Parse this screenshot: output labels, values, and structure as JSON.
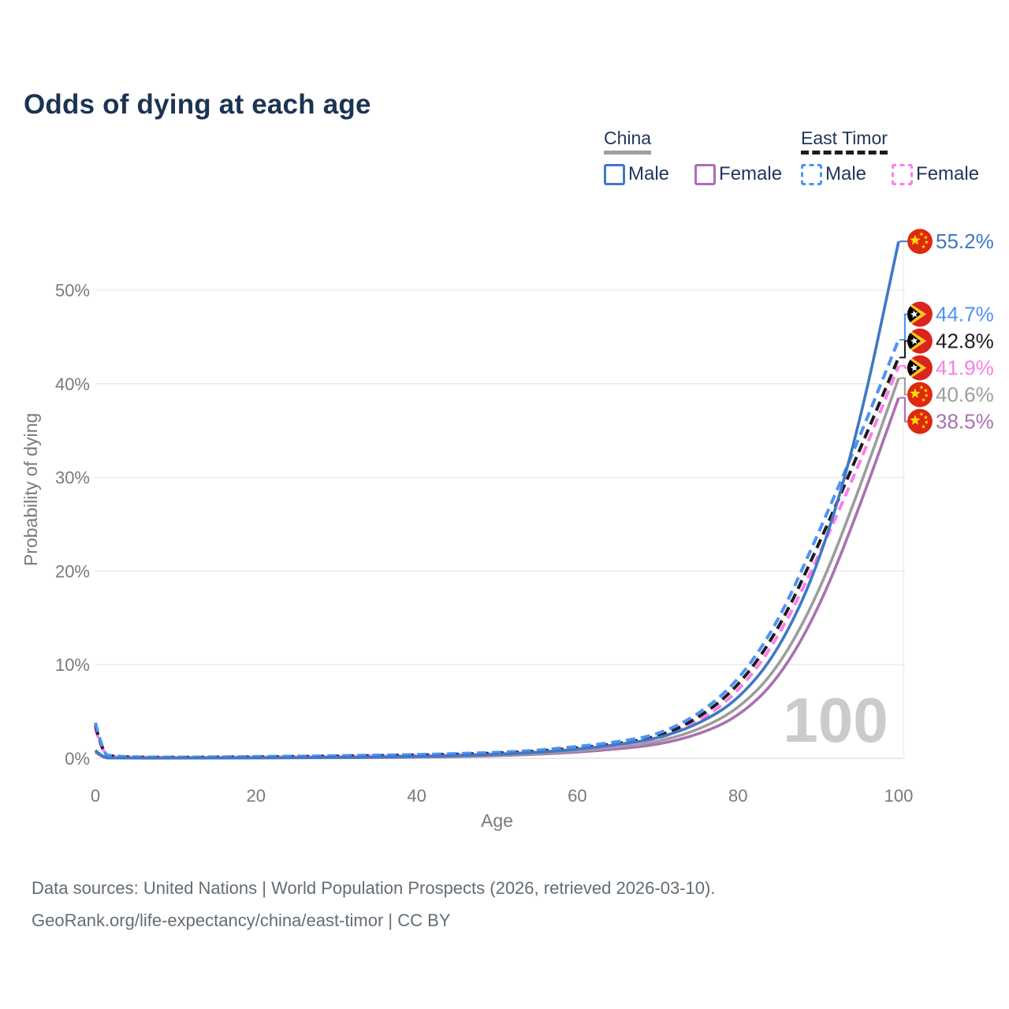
{
  "page": {
    "title": "Odds of dying at each age"
  },
  "legend": {
    "groups": [
      {
        "name": "China",
        "line_style": "solid",
        "underline_color": "#9e9e9e",
        "items": [
          {
            "label": "Male",
            "color": "#3f78c6"
          },
          {
            "label": "Female",
            "color": "#aa70b2"
          }
        ]
      },
      {
        "name": "East Timor",
        "line_style": "dashed",
        "underline_color": "#1c1c1c",
        "items": [
          {
            "label": "Male",
            "color": "#4d92f7"
          },
          {
            "label": "Female",
            "color": "#fb7de7"
          }
        ]
      }
    ]
  },
  "axes": {
    "x_label": "Age",
    "y_label": "Probability of dying",
    "x_ticks": [
      0,
      20,
      40,
      60,
      80,
      100
    ],
    "y_ticks": [
      "0%",
      "10%",
      "20%",
      "30%",
      "40%",
      "50%"
    ]
  },
  "watermark": "100",
  "footer": {
    "line1": "Data sources: United Nations | World Population Prospects (2026, retrieved 2026-03-10).",
    "line2": "GeoRank.org/life-expectancy/china/east-timor | CC BY"
  },
  "chart_data": {
    "type": "line",
    "title": "Odds of dying at each age",
    "xlabel": "Age",
    "ylabel": "Probability of dying",
    "x_range": [
      0,
      100
    ],
    "y_ticks_percent": [
      0,
      10,
      20,
      30,
      40,
      50
    ],
    "grid": "horizontal",
    "legend_position": "top-right",
    "units": "percent probability of dying at each age",
    "ages": [
      0,
      1,
      2,
      5,
      10,
      15,
      20,
      25,
      30,
      35,
      40,
      45,
      50,
      55,
      60,
      65,
      70,
      75,
      80,
      85,
      90,
      95,
      100
    ],
    "series": [
      {
        "id": "china_male",
        "name": "China Male",
        "country": "china",
        "sex": "male",
        "style": "solid",
        "color": "#3f78c6",
        "end_value": 55.2,
        "end_label": "55.2%",
        "values": [
          0.85,
          0.07,
          0.05,
          0.03,
          0.03,
          0.04,
          0.06,
          0.08,
          0.1,
          0.14,
          0.19,
          0.28,
          0.42,
          0.62,
          0.95,
          1.45,
          2.1,
          3.6,
          6.2,
          11.4,
          20.5,
          35.0,
          55.2
        ]
      },
      {
        "id": "et_male",
        "name": "East Timor Male",
        "country": "east-timor",
        "sex": "male",
        "style": "dashed",
        "color": "#4d92f7",
        "end_value": 44.7,
        "end_label": "44.7%",
        "values": [
          3.8,
          0.45,
          0.25,
          0.13,
          0.11,
          0.14,
          0.18,
          0.22,
          0.27,
          0.33,
          0.4,
          0.5,
          0.62,
          0.85,
          1.25,
          1.75,
          2.5,
          4.6,
          8.2,
          14.5,
          24.0,
          34.0,
          44.7
        ]
      },
      {
        "id": "et_total",
        "name": "East Timor Both sexes",
        "country": "east-timor",
        "sex": "both",
        "style": "dashed",
        "color": "#1c1c1c",
        "end_value": 42.8,
        "end_label": "42.8%",
        "values": [
          3.5,
          0.4,
          0.22,
          0.12,
          0.1,
          0.12,
          0.15,
          0.19,
          0.23,
          0.28,
          0.35,
          0.44,
          0.55,
          0.75,
          1.1,
          1.55,
          2.25,
          4.2,
          7.6,
          13.6,
          22.7,
          32.6,
          42.8
        ]
      },
      {
        "id": "et_female",
        "name": "East Timor Female",
        "country": "east-timor",
        "sex": "female",
        "style": "dashed",
        "color": "#fb7de7",
        "end_value": 41.9,
        "end_label": "41.9%",
        "values": [
          3.2,
          0.36,
          0.2,
          0.11,
          0.09,
          0.1,
          0.12,
          0.15,
          0.19,
          0.24,
          0.3,
          0.38,
          0.48,
          0.66,
          0.97,
          1.38,
          2.0,
          3.8,
          7.0,
          12.8,
          21.5,
          31.2,
          41.9
        ]
      },
      {
        "id": "china_total",
        "name": "China Both sexes",
        "country": "china",
        "sex": "both",
        "style": "solid",
        "color": "#9d9d9d",
        "end_value": 40.6,
        "end_label": "40.6%",
        "values": [
          0.75,
          0.06,
          0.04,
          0.03,
          0.02,
          0.03,
          0.05,
          0.06,
          0.08,
          0.11,
          0.15,
          0.22,
          0.35,
          0.5,
          0.78,
          1.2,
          1.75,
          3.0,
          5.2,
          9.6,
          17.5,
          28.5,
          40.6
        ]
      },
      {
        "id": "china_female",
        "name": "China Female",
        "country": "china",
        "sex": "female",
        "style": "solid",
        "color": "#aa70b2",
        "end_value": 38.5,
        "end_label": "38.5%",
        "values": [
          0.65,
          0.05,
          0.04,
          0.02,
          0.02,
          0.03,
          0.04,
          0.05,
          0.06,
          0.08,
          0.11,
          0.17,
          0.28,
          0.42,
          0.65,
          1.0,
          1.45,
          2.5,
          4.4,
          8.4,
          15.8,
          26.5,
          38.5
        ]
      }
    ]
  }
}
